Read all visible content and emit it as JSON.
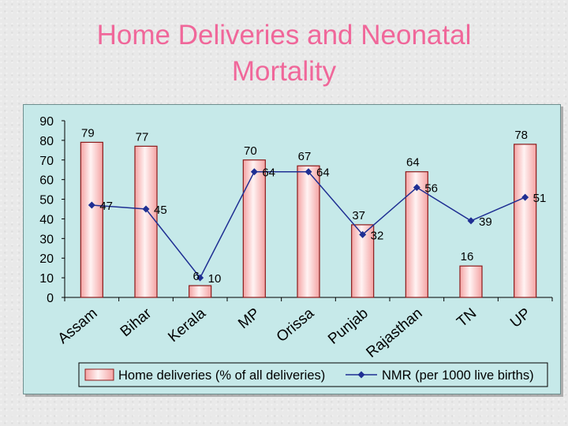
{
  "title_line1": "Home Deliveries and Neonatal",
  "title_line2": "Mortality",
  "colors": {
    "title": "#f0679a",
    "panel_bg": "#c6e9e9",
    "bar_edge": "#8b1a1a",
    "bar_light": "#fff3f3",
    "bar_pink": "#f4a3a3",
    "line": "#1f2f93"
  },
  "chart_data": {
    "type": "bar",
    "title": "Home Deliveries and Neonatal Mortality",
    "categories": [
      "Assam",
      "Bihar",
      "Kerala",
      "MP",
      "Orissa",
      "Punjab",
      "Rajasthan",
      "TN",
      "UP"
    ],
    "ylim": [
      0,
      90
    ],
    "yticks": [
      0,
      10,
      20,
      30,
      40,
      50,
      60,
      70,
      80,
      90
    ],
    "grid": false,
    "legend_position": "bottom",
    "series": [
      {
        "name": "Home deliveries (% of all deliveries)",
        "type": "bar",
        "values": [
          79,
          77,
          6,
          70,
          67,
          37,
          64,
          16,
          78
        ]
      },
      {
        "name": "NMR (per 1000 live births)",
        "type": "line",
        "marker": "diamond",
        "values": [
          47,
          45,
          10,
          64,
          64,
          32,
          56,
          39,
          51
        ]
      }
    ]
  }
}
